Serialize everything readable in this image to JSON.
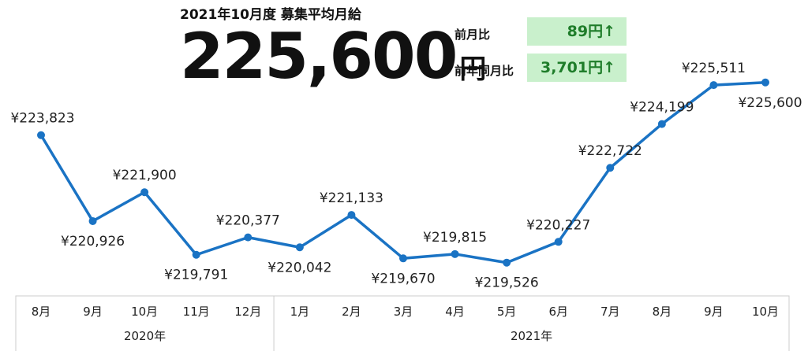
{
  "header": {
    "title": "2021年10月度 募集平均月給",
    "big_number": "225,600",
    "big_unit": "円"
  },
  "stats": {
    "mom_label": "前月比",
    "mom_value": "89円↑",
    "yoy_label": "前年同月比",
    "yoy_value": "3,701円↑"
  },
  "colors": {
    "line": "#1a73c4",
    "box_bg": "#c9f0cc",
    "box_text": "#1f7d2a",
    "axis": "#cccccc"
  },
  "chart_data": {
    "type": "line",
    "categories": [
      "8月",
      "9月",
      "10月",
      "11月",
      "12月",
      "1月",
      "2月",
      "3月",
      "4月",
      "5月",
      "6月",
      "7月",
      "8月",
      "9月",
      "10月"
    ],
    "values": [
      223823,
      220926,
      221900,
      219791,
      220377,
      220042,
      221133,
      219670,
      219815,
      219526,
      220227,
      222722,
      224199,
      225511,
      225600
    ],
    "labels": [
      "¥223,823",
      "¥220,926",
      "¥221,900",
      "¥219,791",
      "¥220,377",
      "¥220,042",
      "¥221,133",
      "¥219,670",
      "¥219,815",
      "¥219,526",
      "¥220,227",
      "¥222,722",
      "¥224,199",
      "¥225,511",
      "¥225,600"
    ],
    "label_position": [
      "above",
      "below",
      "above",
      "below",
      "above",
      "below",
      "above",
      "below",
      "above",
      "below",
      "above",
      "above",
      "above",
      "above",
      "below"
    ],
    "groups": [
      {
        "name": "2020年",
        "count": 5
      },
      {
        "name": "2021年",
        "count": 10
      }
    ],
    "ylim": [
      214000,
      227000
    ],
    "grid": false,
    "legend": "none"
  }
}
